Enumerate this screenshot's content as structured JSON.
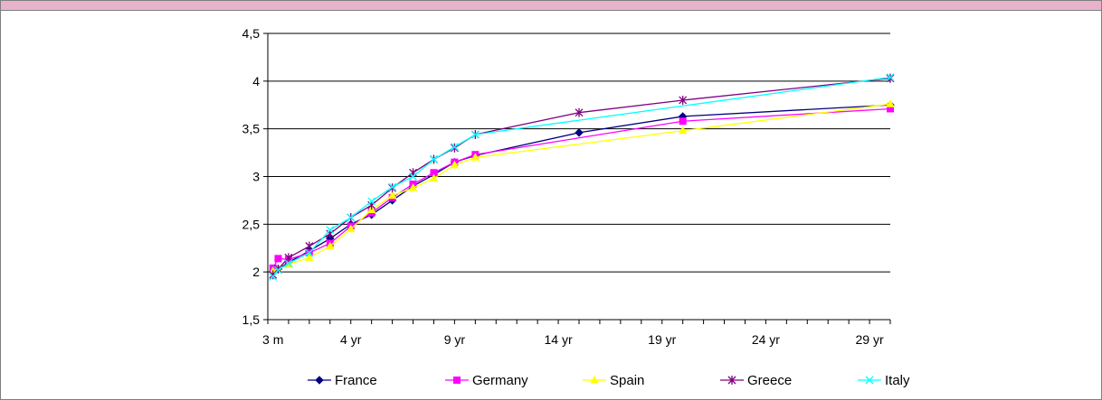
{
  "chart_data": {
    "type": "line",
    "title": "",
    "xlabel": "",
    "ylabel": "",
    "ylim": [
      1.5,
      4.5
    ],
    "yticks": [
      "1,5",
      "2",
      "2,5",
      "3",
      "3,5",
      "4",
      "4,5"
    ],
    "ytick_values": [
      1.5,
      2,
      2.5,
      3,
      3.5,
      4,
      4.5
    ],
    "xlim": [
      0,
      30
    ],
    "xticks": [
      "3 m",
      "4 yr",
      "9 yr",
      "14 yr",
      "19 yr",
      "24 yr",
      "29 yr"
    ],
    "xtick_values": [
      0.25,
      4,
      9,
      14,
      19,
      24,
      29
    ],
    "grid": "horizontal",
    "legend_position": "bottom",
    "x": [
      0.25,
      0.5,
      1,
      2,
      3,
      4,
      5,
      6,
      7,
      8,
      9,
      10,
      15,
      20,
      30
    ],
    "series": [
      {
        "name": "France",
        "color": "#000080",
        "marker": "diamond",
        "values": [
          2.0,
          2.03,
          2.1,
          2.22,
          2.35,
          2.5,
          2.6,
          2.75,
          2.9,
          3.02,
          3.15,
          3.22,
          3.46,
          3.63,
          3.75
        ]
      },
      {
        "name": "Germany",
        "color": "#ff00ff",
        "marker": "square",
        "values": [
          2.04,
          2.14,
          2.13,
          2.2,
          2.3,
          2.48,
          2.62,
          2.78,
          2.92,
          3.04,
          3.15,
          3.23,
          null,
          3.58,
          3.71
        ]
      },
      {
        "name": "Spain",
        "color": "#ffff00",
        "marker": "triangle",
        "values": [
          2.01,
          2.03,
          2.08,
          2.15,
          2.27,
          2.45,
          2.65,
          2.8,
          2.88,
          2.98,
          3.12,
          3.2,
          null,
          3.48,
          3.76
        ]
      },
      {
        "name": "Greece",
        "color": "#800080",
        "marker": "star",
        "values": [
          1.97,
          2.03,
          2.15,
          2.27,
          2.4,
          2.57,
          2.7,
          2.88,
          3.04,
          3.18,
          3.3,
          3.44,
          3.67,
          3.8,
          4.03
        ]
      },
      {
        "name": "Italy",
        "color": "#00ffff",
        "marker": "x",
        "values": [
          1.95,
          2.02,
          2.09,
          2.2,
          2.44,
          2.57,
          2.74,
          2.89,
          3.0,
          3.18,
          3.31,
          3.44,
          null,
          null,
          4.04
        ]
      }
    ]
  }
}
